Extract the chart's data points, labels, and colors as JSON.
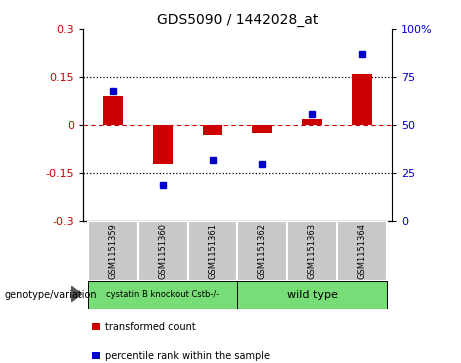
{
  "title": "GDS5090 / 1442028_at",
  "samples": [
    "GSM1151359",
    "GSM1151360",
    "GSM1151361",
    "GSM1151362",
    "GSM1151363",
    "GSM1151364"
  ],
  "bar_values": [
    0.09,
    -0.12,
    -0.03,
    -0.025,
    0.02,
    0.16
  ],
  "percentile_values": [
    68,
    19,
    32,
    30,
    56,
    87
  ],
  "bar_color": "#cc0000",
  "dot_color": "#0000cc",
  "ylim_left": [
    -0.3,
    0.3
  ],
  "ylim_right": [
    0,
    100
  ],
  "yticks_left": [
    -0.3,
    -0.15,
    0,
    0.15,
    0.3
  ],
  "yticks_right": [
    0,
    25,
    50,
    75,
    100
  ],
  "group1_label": "cystatin B knockout Cstb-/-",
  "group2_label": "wild type",
  "group1_indices": [
    0,
    1,
    2
  ],
  "group2_indices": [
    3,
    4,
    5
  ],
  "group1_color": "#77dd77",
  "group2_color": "#77dd77",
  "genotype_label": "genotype/variation",
  "legend_bar_label": "transformed count",
  "legend_dot_label": "percentile rank within the sample",
  "bg_color": "#ffffff",
  "plot_bg_color": "#ffffff",
  "sample_bg_color": "#c8c8c8",
  "tick_label_color_left": "#cc0000",
  "tick_label_color_right": "#0000cc",
  "bar_width": 0.4
}
